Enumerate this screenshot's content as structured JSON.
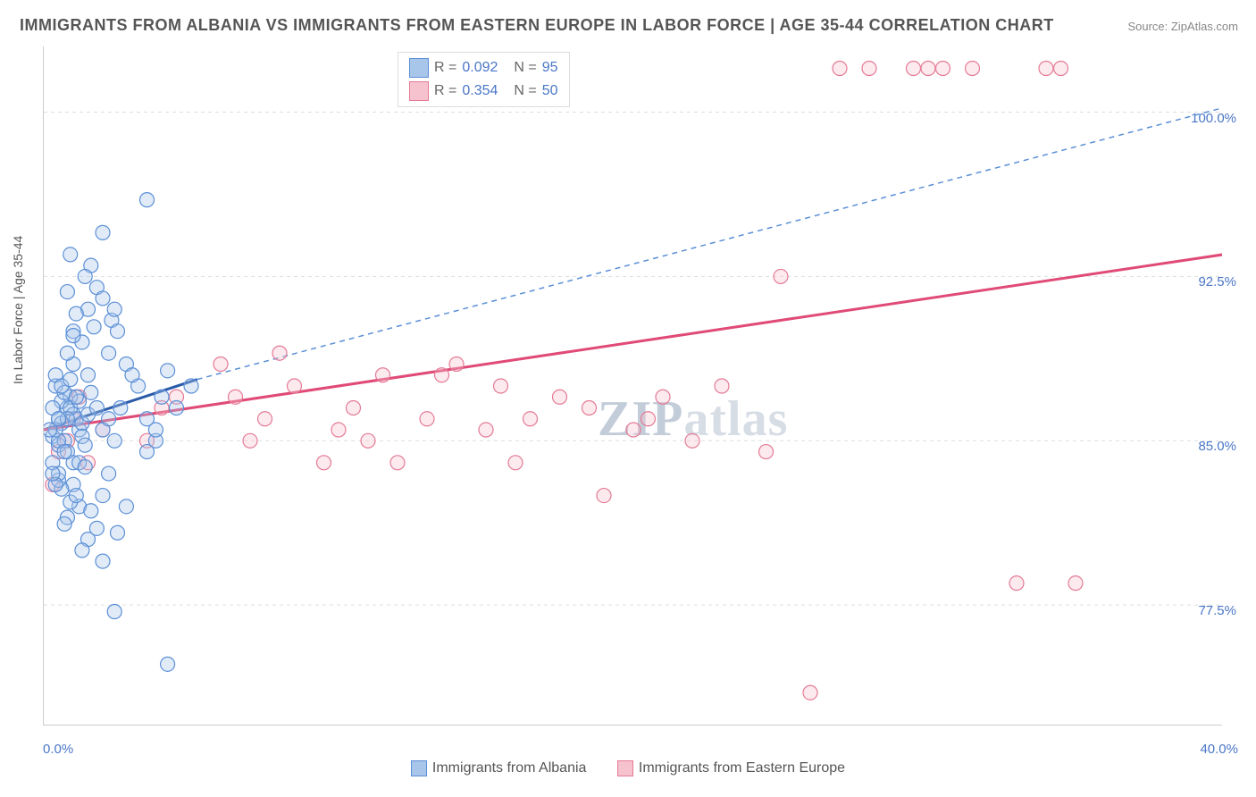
{
  "title": "IMMIGRANTS FROM ALBANIA VS IMMIGRANTS FROM EASTERN EUROPE IN LABOR FORCE | AGE 35-44 CORRELATION CHART",
  "source_label": "Source: ",
  "source_name": "ZipAtlas.com",
  "ylabel": "In Labor Force | Age 35-44",
  "watermark_a": "ZIP",
  "watermark_b": "atlas",
  "chart": {
    "type": "scatter",
    "xlim": [
      0,
      40
    ],
    "ylim": [
      72,
      103
    ],
    "x_ticks_major": [
      0,
      40
    ],
    "x_ticks_minor": [
      5,
      10,
      15,
      20,
      25,
      30,
      35
    ],
    "x_tick_labels": [
      "0.0%",
      "40.0%"
    ],
    "y_ticks": [
      77.5,
      85.0,
      92.5,
      100.0
    ],
    "y_tick_labels": [
      "77.5%",
      "85.0%",
      "92.5%",
      "100.0%"
    ],
    "background_color": "#ffffff",
    "grid_color": "#dddddd",
    "marker_radius": 8,
    "marker_stroke_width": 1.2,
    "marker_fill_opacity": 0.35,
    "series": [
      {
        "name": "Immigrants from Albania",
        "color_fill": "#a8c5ea",
        "color_stroke": "#5b8fd6",
        "legend_swatch_fill": "#a8c5ea",
        "legend_swatch_stroke": "#5b8fd6",
        "R": "0.092",
        "N": "95",
        "trend_solid": {
          "x1": 0,
          "y1": 85.5,
          "x2": 5.2,
          "y2": 87.8,
          "color": "#2a5aa8",
          "width": 3
        },
        "trend_dash": {
          "x1": 5.2,
          "y1": 87.8,
          "x2": 40,
          "y2": 100.2,
          "color": "#5b8fd6",
          "width": 1.5,
          "dash": "6,5"
        },
        "points": [
          [
            0.3,
            85.2
          ],
          [
            0.5,
            86.0
          ],
          [
            0.4,
            87.5
          ],
          [
            0.6,
            85.8
          ],
          [
            0.8,
            86.5
          ],
          [
            0.5,
            84.8
          ],
          [
            0.7,
            85.0
          ],
          [
            0.9,
            87.0
          ],
          [
            1.0,
            86.2
          ],
          [
            0.6,
            86.8
          ],
          [
            1.2,
            85.5
          ],
          [
            0.4,
            88.0
          ],
          [
            0.8,
            84.5
          ],
          [
            1.1,
            86.0
          ],
          [
            0.3,
            86.5
          ],
          [
            0.7,
            87.2
          ],
          [
            1.3,
            85.8
          ],
          [
            0.5,
            85.0
          ],
          [
            0.9,
            86.5
          ],
          [
            1.0,
            84.0
          ],
          [
            0.6,
            87.5
          ],
          [
            0.8,
            86.0
          ],
          [
            1.2,
            86.8
          ],
          [
            0.4,
            85.5
          ],
          [
            1.5,
            86.2
          ],
          [
            0.7,
            84.5
          ],
          [
            1.1,
            87.0
          ],
          [
            0.5,
            86.0
          ],
          [
            1.3,
            85.2
          ],
          [
            0.9,
            87.8
          ],
          [
            2.0,
            85.5
          ],
          [
            1.8,
            86.5
          ],
          [
            2.4,
            85.0
          ],
          [
            1.6,
            87.2
          ],
          [
            2.2,
            86.0
          ],
          [
            1.0,
            88.5
          ],
          [
            1.4,
            84.8
          ],
          [
            0.8,
            89.0
          ],
          [
            2.6,
            86.5
          ],
          [
            1.2,
            84.0
          ],
          [
            2.3,
            90.5
          ],
          [
            1.5,
            91.0
          ],
          [
            1.8,
            92.0
          ],
          [
            1.0,
            90.0
          ],
          [
            2.0,
            91.5
          ],
          [
            1.3,
            89.5
          ],
          [
            2.5,
            90.0
          ],
          [
            1.6,
            93.0
          ],
          [
            0.8,
            91.8
          ],
          [
            1.1,
            90.8
          ],
          [
            1.4,
            92.5
          ],
          [
            2.2,
            89.0
          ],
          [
            0.9,
            93.5
          ],
          [
            1.7,
            90.2
          ],
          [
            2.8,
            88.5
          ],
          [
            2.0,
            94.5
          ],
          [
            3.5,
            96.0
          ],
          [
            1.5,
            88.0
          ],
          [
            1.0,
            89.8
          ],
          [
            2.4,
            91.0
          ],
          [
            1.2,
            82.0
          ],
          [
            0.8,
            81.5
          ],
          [
            1.5,
            80.5
          ],
          [
            2.0,
            82.5
          ],
          [
            1.0,
            83.0
          ],
          [
            1.8,
            81.0
          ],
          [
            0.6,
            82.8
          ],
          [
            1.3,
            80.0
          ],
          [
            2.2,
            83.5
          ],
          [
            0.9,
            82.2
          ],
          [
            1.6,
            81.8
          ],
          [
            0.5,
            83.2
          ],
          [
            2.5,
            80.8
          ],
          [
            1.1,
            82.5
          ],
          [
            0.7,
            81.2
          ],
          [
            1.4,
            83.8
          ],
          [
            2.8,
            82.0
          ],
          [
            2.0,
            79.5
          ],
          [
            2.4,
            77.2
          ],
          [
            3.8,
            85.0
          ],
          [
            4.2,
            74.8
          ],
          [
            3.2,
            87.5
          ],
          [
            3.5,
            86.0
          ],
          [
            4.0,
            87.0
          ],
          [
            3.0,
            88.0
          ],
          [
            4.5,
            86.5
          ],
          [
            5.0,
            87.5
          ],
          [
            3.8,
            85.5
          ],
          [
            4.2,
            88.2
          ],
          [
            3.5,
            84.5
          ],
          [
            0.3,
            84.0
          ],
          [
            0.5,
            83.5
          ],
          [
            0.4,
            83.0
          ],
          [
            0.2,
            85.5
          ],
          [
            0.3,
            83.5
          ]
        ]
      },
      {
        "name": "Immigrants from Eastern Europe",
        "color_fill": "#f5c2cd",
        "color_stroke": "#e57a96",
        "legend_swatch_fill": "#f5c2cd",
        "legend_swatch_stroke": "#e57a96",
        "R": "0.354",
        "N": "50",
        "trend_solid": {
          "x1": 0,
          "y1": 85.5,
          "x2": 40,
          "y2": 93.5,
          "color": "#e04a76",
          "width": 3
        },
        "points": [
          [
            6.0,
            88.5
          ],
          [
            7.5,
            86.0
          ],
          [
            8.0,
            89.0
          ],
          [
            9.5,
            84.0
          ],
          [
            10.0,
            85.5
          ],
          [
            10.5,
            86.5
          ],
          [
            11.5,
            88.0
          ],
          [
            12.0,
            84.0
          ],
          [
            13.0,
            86.0
          ],
          [
            14.0,
            88.5
          ],
          [
            15.0,
            85.5
          ],
          [
            15.5,
            87.5
          ],
          [
            16.0,
            84.0
          ],
          [
            16.5,
            86.0
          ],
          [
            17.5,
            87.0
          ],
          [
            18.5,
            86.5
          ],
          [
            19.0,
            82.5
          ],
          [
            20.0,
            85.5
          ],
          [
            20.5,
            86.0
          ],
          [
            21.0,
            87.0
          ],
          [
            22.0,
            85.0
          ],
          [
            23.0,
            87.5
          ],
          [
            25.0,
            92.5
          ],
          [
            24.5,
            84.5
          ],
          [
            26.0,
            73.5
          ],
          [
            27.0,
            102.0
          ],
          [
            28.0,
            102.0
          ],
          [
            29.5,
            102.0
          ],
          [
            30.0,
            102.0
          ],
          [
            30.5,
            102.0
          ],
          [
            31.5,
            102.0
          ],
          [
            33.0,
            78.5
          ],
          [
            35.0,
            78.5
          ],
          [
            34.0,
            102.0
          ],
          [
            34.5,
            102.0
          ],
          [
            6.5,
            87.0
          ],
          [
            7.0,
            85.0
          ],
          [
            8.5,
            87.5
          ],
          [
            11.0,
            85.0
          ],
          [
            13.5,
            88.0
          ],
          [
            4.0,
            86.5
          ],
          [
            3.5,
            85.0
          ],
          [
            4.5,
            87.0
          ],
          [
            0.3,
            83.0
          ],
          [
            0.5,
            84.5
          ],
          [
            0.8,
            85.0
          ],
          [
            1.0,
            86.0
          ],
          [
            1.5,
            84.0
          ],
          [
            2.0,
            85.5
          ],
          [
            1.2,
            87.0
          ]
        ]
      }
    ]
  },
  "legend_bottom": [
    {
      "label": "Immigrants from Albania",
      "fill": "#a8c5ea",
      "stroke": "#5b8fd6"
    },
    {
      "label": "Immigrants from Eastern Europe",
      "fill": "#f5c2cd",
      "stroke": "#e57a96"
    }
  ]
}
